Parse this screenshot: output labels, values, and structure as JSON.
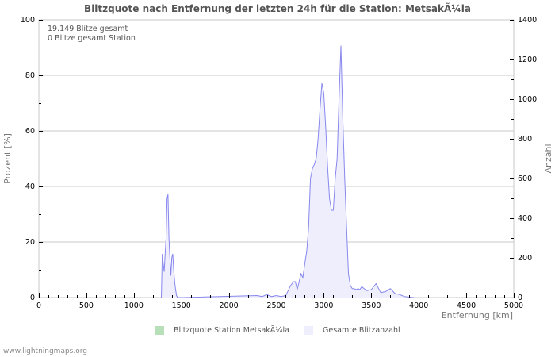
{
  "title": "Blitzquote nach Entfernung der letzten 24h für die Station: MetsakÃ¼la",
  "info": {
    "line1": "19.149 Blitze gesamt",
    "line2": "0 Blitze gesamt Station"
  },
  "axes": {
    "left_title": "Prozent   [%]",
    "right_title": "Anzahl",
    "x_title": "Entfernung   [km]",
    "left_ticks": [
      "0",
      "20",
      "40",
      "60",
      "80",
      "100"
    ],
    "right_ticks": [
      "0",
      "200",
      "400",
      "600",
      "800",
      "1000",
      "1200",
      "1400"
    ],
    "x_ticks": [
      "0",
      "500",
      "1000",
      "1500",
      "2000",
      "2500",
      "3000",
      "3500",
      "4000",
      "4500",
      "5000"
    ]
  },
  "legend": {
    "item1": "Blitzquote Station MetsakÃ¼la",
    "item2": "Gesamte Blitzanzahl",
    "color1": "#b8e0b8",
    "color2": "#eeeefc"
  },
  "footer": "www.lightningmaps.org",
  "colors": {
    "line": "#8888ee",
    "fill": "#eeeefc",
    "grid": "#c8c8c8"
  },
  "chart_data": {
    "type": "area",
    "title": "Blitzquote nach Entfernung der letzten 24h für die Station: MetsakÃ¼la",
    "xlabel": "Entfernung [km]",
    "ylabel_left": "Prozent [%]",
    "ylabel_right": "Anzahl",
    "xlim": [
      0,
      5000
    ],
    "ylim_left": [
      0,
      100
    ],
    "ylim_right": [
      0,
      1400
    ],
    "grid": true,
    "legend_position": "bottom",
    "series": [
      {
        "name": "Blitzquote Station MetsakÃ¼la",
        "axis": "left",
        "x": [
          0,
          5000
        ],
        "values": [
          0,
          0
        ]
      },
      {
        "name": "Gesamte Blitzanzahl",
        "axis": "right",
        "x": [
          1290,
          1300,
          1310,
          1320,
          1330,
          1340,
          1350,
          1360,
          1370,
          1380,
          1390,
          1400,
          1410,
          1420,
          1430,
          1440,
          1450,
          1460,
          1470,
          1480,
          1490,
          1500,
          1510,
          1520,
          2300,
          2350,
          2400,
          2450,
          2500,
          2550,
          2600,
          2650,
          2680,
          2700,
          2720,
          2740,
          2760,
          2780,
          2800,
          2820,
          2840,
          2860,
          2880,
          2900,
          2920,
          2940,
          2960,
          2980,
          3000,
          3020,
          3040,
          3060,
          3080,
          3100,
          3120,
          3140,
          3160,
          3180,
          3200,
          3220,
          3240,
          3260,
          3280,
          3300,
          3320,
          3340,
          3360,
          3380,
          3400,
          3450,
          3500,
          3550,
          3600,
          3650,
          3700,
          3750,
          3800,
          3850,
          3900,
          3950
        ],
        "values": [
          0,
          220,
          170,
          130,
          220,
          300,
          500,
          520,
          300,
          200,
          110,
          200,
          220,
          140,
          80,
          40,
          10,
          0,
          0,
          0,
          0,
          0,
          0,
          0,
          10,
          5,
          15,
          5,
          10,
          5,
          10,
          60,
          80,
          80,
          40,
          80,
          120,
          100,
          170,
          230,
          350,
          600,
          650,
          670,
          700,
          800,
          950,
          1080,
          1030,
          860,
          660,
          500,
          440,
          440,
          600,
          700,
          1000,
          1270,
          900,
          600,
          350,
          120,
          60,
          45,
          45,
          40,
          45,
          40,
          55,
          35,
          40,
          70,
          25,
          30,
          45,
          20,
          15,
          5,
          2,
          0
        ]
      }
    ]
  }
}
